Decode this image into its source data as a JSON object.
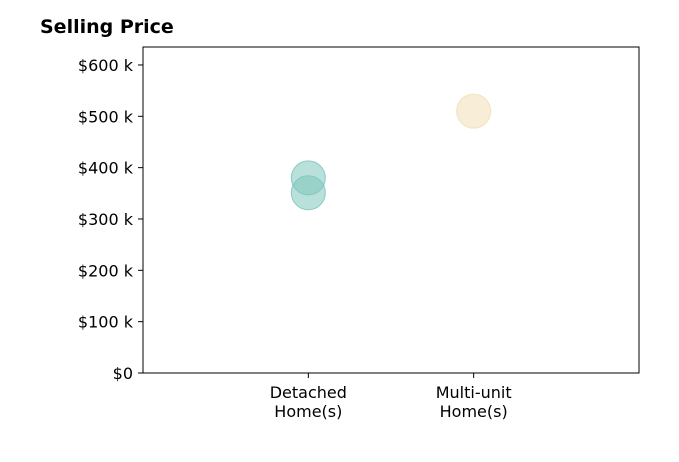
{
  "chart_data": {
    "type": "scatter",
    "title": "Selling Price",
    "xlabel": "",
    "ylabel": "",
    "categories": [
      "Detached Home(s)",
      "Multi-unit Home(s)"
    ],
    "category_lines": [
      [
        "Detached",
        "Home(s)"
      ],
      [
        "Multi-unit",
        "Home(s)"
      ]
    ],
    "ylim": [
      0,
      635
    ],
    "yticks": [
      0,
      100,
      200,
      300,
      400,
      500,
      600
    ],
    "ytick_labels": [
      "$0",
      "$100 k",
      "$200 k",
      "$300 k",
      "$400 k",
      "$500 k",
      "$600 k"
    ],
    "grid": false,
    "series": [
      {
        "category": "Detached Home(s)",
        "values": [
          380,
          351
        ],
        "color": "#7fc6bc"
      },
      {
        "category": "Multi-unit Home(s)",
        "values": [
          510
        ],
        "color": "#f3dfb6"
      }
    ]
  }
}
